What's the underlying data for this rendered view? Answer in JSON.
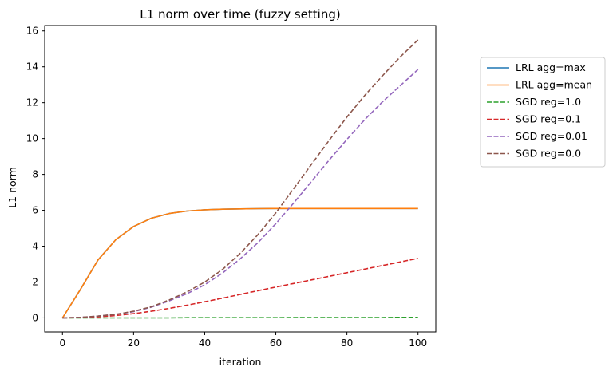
{
  "chart_data": {
    "type": "line",
    "title": "L1 norm over time (fuzzy setting)",
    "xlabel": "iteration",
    "ylabel": "L1 norm",
    "xlim": [
      -5,
      105
    ],
    "ylim": [
      -0.78,
      16.3
    ],
    "xticks": [
      0,
      20,
      40,
      60,
      80,
      100
    ],
    "yticks": [
      0,
      2,
      4,
      6,
      8,
      10,
      12,
      14,
      16
    ],
    "grid": false,
    "legend_position": "outside-right",
    "x": [
      0,
      5,
      10,
      15,
      20,
      25,
      30,
      35,
      40,
      45,
      50,
      55,
      60,
      65,
      70,
      75,
      80,
      85,
      90,
      95,
      100
    ],
    "series": [
      {
        "name": "LRL agg=max",
        "color": "#1f77b4",
        "style": "solid",
        "values": [
          0.0,
          1.57,
          3.23,
          4.36,
          5.1,
          5.56,
          5.82,
          5.96,
          6.03,
          6.06,
          6.08,
          6.09,
          6.1,
          6.1,
          6.1,
          6.1,
          6.1,
          6.1,
          6.1,
          6.1,
          6.1
        ]
      },
      {
        "name": "LRL agg=mean",
        "color": "#ff7f0e",
        "style": "solid",
        "values": [
          0.0,
          1.57,
          3.23,
          4.36,
          5.1,
          5.56,
          5.82,
          5.96,
          6.03,
          6.06,
          6.08,
          6.09,
          6.1,
          6.1,
          6.1,
          6.1,
          6.1,
          6.1,
          6.1,
          6.1,
          6.1
        ]
      },
      {
        "name": "SGD reg=1.0",
        "color": "#2ca02c",
        "style": "dashed",
        "values": [
          0.0,
          0.0,
          0.0,
          0.0,
          0.0,
          0.0,
          0.0,
          0.01,
          0.01,
          0.01,
          0.01,
          0.01,
          0.01,
          0.02,
          0.02,
          0.02,
          0.02,
          0.02,
          0.02,
          0.03,
          0.03
        ]
      },
      {
        "name": "SGD reg=0.1",
        "color": "#d62728",
        "style": "dashed",
        "values": [
          0.0,
          0.02,
          0.06,
          0.13,
          0.24,
          0.37,
          0.53,
          0.71,
          0.9,
          1.1,
          1.31,
          1.52,
          1.72,
          1.92,
          2.12,
          2.32,
          2.52,
          2.72,
          2.92,
          3.12,
          3.32
        ]
      },
      {
        "name": "SGD reg=0.01",
        "color": "#9467bd",
        "style": "dashed",
        "values": [
          0.0,
          0.03,
          0.1,
          0.2,
          0.35,
          0.6,
          0.95,
          1.35,
          1.85,
          2.5,
          3.3,
          4.2,
          5.25,
          6.4,
          7.6,
          8.8,
          9.95,
          11.05,
          12.05,
          12.95,
          13.85
        ]
      },
      {
        "name": "SGD reg=0.0",
        "color": "#8c564b",
        "style": "dashed",
        "values": [
          0.0,
          0.03,
          0.1,
          0.2,
          0.37,
          0.62,
          1.0,
          1.45,
          2.0,
          2.7,
          3.6,
          4.65,
          5.85,
          7.2,
          8.55,
          9.9,
          11.2,
          12.4,
          13.5,
          14.55,
          15.5
        ]
      }
    ]
  }
}
